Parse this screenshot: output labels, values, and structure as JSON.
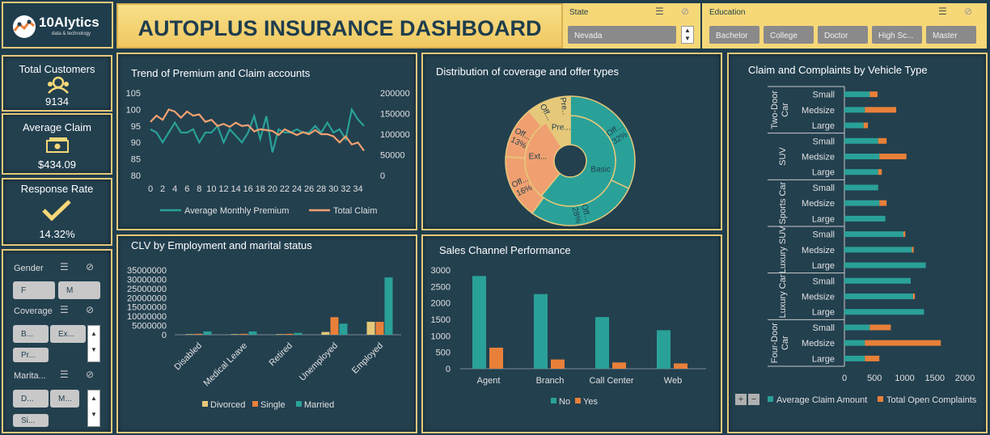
{
  "header": {
    "logo_text": "10Alytics",
    "logo_sub": "data & technology",
    "title": "AUTOPLUS INSURANCE DASHBOARD",
    "state_label": "State",
    "state_value": "Nevada",
    "education_label": "Education",
    "education_options": [
      "Bachelor",
      "College",
      "Doctor",
      "High Sc...",
      "Master"
    ]
  },
  "kpis": {
    "total_customers_label": "Total Customers",
    "total_customers_value": "9134",
    "average_claim_label": "Average Claim",
    "average_claim_value": "$434.09",
    "response_rate_label": "Response Rate",
    "response_rate_value": "14.32%"
  },
  "filters": {
    "gender_label": "Gender",
    "gender_options": [
      "F",
      "M"
    ],
    "coverage_label": "Coverage",
    "coverage_options": [
      "B...",
      "Ex...",
      "Pr..."
    ],
    "marital_label": "Marita...",
    "marital_options": [
      "D...",
      "M...",
      "Si..."
    ]
  },
  "chart_data": [
    {
      "type": "line",
      "title": "Trend of Premium and Claim accounts",
      "x": [
        0,
        1,
        2,
        3,
        4,
        5,
        6,
        7,
        8,
        9,
        10,
        11,
        12,
        13,
        14,
        15,
        16,
        17,
        18,
        19,
        20,
        21,
        22,
        23,
        24,
        25,
        26,
        27,
        28,
        29,
        30,
        31,
        32,
        33,
        34,
        35
      ],
      "x_ticks": [
        0,
        2,
        4,
        6,
        8,
        10,
        12,
        14,
        16,
        18,
        20,
        22,
        24,
        26,
        28,
        30,
        32,
        34
      ],
      "y_left_ticks": [
        80,
        85,
        90,
        95,
        100,
        105
      ],
      "ylim_left": [
        80,
        105
      ],
      "y_right_ticks": [
        0,
        50000,
        100000,
        150000,
        200000
      ],
      "ylim_right": [
        0,
        200000
      ],
      "series": [
        {
          "name": "Average Monthly Premium",
          "axis": "left",
          "color": "#2aa198",
          "values": [
            94,
            93,
            90,
            93,
            96,
            93,
            93,
            94,
            90,
            93,
            93,
            95,
            90,
            94,
            92,
            90,
            93,
            98,
            91,
            98,
            87,
            94,
            93,
            93,
            94,
            93,
            93,
            95,
            93,
            96,
            93,
            94,
            91,
            100,
            97,
            95
          ]
        },
        {
          "name": "Total Claim",
          "axis": "right",
          "color": "#f0a070",
          "values": [
            130000,
            145000,
            135000,
            160000,
            155000,
            140000,
            155000,
            145000,
            148000,
            130000,
            135000,
            120000,
            125000,
            118000,
            128000,
            120000,
            122000,
            107000,
            112000,
            110000,
            108000,
            98000,
            112000,
            105000,
            98000,
            105000,
            100000,
            110000,
            100000,
            100000,
            95000,
            80000,
            95000,
            75000,
            80000,
            60000
          ]
        }
      ]
    },
    {
      "type": "pie",
      "title": "Distribution of coverage and offer types",
      "inner_ring": [
        {
          "label": "Basic",
          "value": 61,
          "color": "#2aa198"
        },
        {
          "label": "Ext...",
          "value": 30,
          "color": "#f0a070"
        },
        {
          "label": "Pre...",
          "value": 9,
          "color": "#e6c87a"
        }
      ],
      "outer_ring": [
        {
          "label": "Off...",
          "pct": "32%",
          "value": 32,
          "color": "#2aa198"
        },
        {
          "label": "Off...",
          "pct": "28%",
          "value": 28,
          "color": "#2aa198"
        },
        {
          "label": "Off...",
          "pct": "16%",
          "value": 16,
          "color": "#f0a070"
        },
        {
          "label": "Off...",
          "pct": "13%",
          "value": 13,
          "color": "#f0a070"
        },
        {
          "label": "Off...",
          "pct": "",
          "value": 6,
          "color": "#e6c87a"
        },
        {
          "label": "Pre...",
          "pct": "",
          "value": 5,
          "color": "#e6c87a"
        }
      ]
    },
    {
      "type": "bar",
      "title": "Claim and Complaints by Vehicle Type",
      "orientation": "horizontal",
      "groups": [
        {
          "name": "Two-Door Car",
          "sizes": [
            "Small",
            "Medsize",
            "Large"
          ]
        },
        {
          "name": "SUV",
          "sizes": [
            "Small",
            "Medsize",
            "Large"
          ]
        },
        {
          "name": "Sports Car",
          "sizes": [
            "Small",
            "Medsize",
            "Large"
          ]
        },
        {
          "name": "Luxury SUV",
          "sizes": [
            "Small",
            "Medsize",
            "Large"
          ]
        },
        {
          "name": "Luxury Car",
          "sizes": [
            "Small",
            "Medsize",
            "Large"
          ]
        },
        {
          "name": "Four-Door Car",
          "sizes": [
            "Small",
            "Medsize",
            "Large"
          ]
        }
      ],
      "x_ticks": [
        0,
        500,
        1000,
        1500,
        2000
      ],
      "xlim": [
        0,
        2000
      ],
      "series": [
        {
          "name": "Average Claim Amount",
          "color": "#2aa198",
          "values": [
            420,
            340,
            320,
            560,
            580,
            560,
            560,
            580,
            680,
            980,
            1120,
            1350,
            1100,
            1140,
            1320,
            420,
            340,
            340
          ]
        },
        {
          "name": "Total Open Complaints",
          "color": "#e8803a",
          "values": [
            130,
            520,
            70,
            140,
            450,
            60,
            0,
            120,
            0,
            30,
            30,
            0,
            0,
            30,
            0,
            350,
            1260,
            240
          ]
        }
      ]
    },
    {
      "type": "bar",
      "title": "CLV by Employment and marital status",
      "categories": [
        "Disabled",
        "Medical Leave",
        "Retired",
        "Unemployed",
        "Employed"
      ],
      "y_ticks": [
        0,
        5000000,
        10000000,
        15000000,
        20000000,
        25000000,
        30000000,
        35000000
      ],
      "ylim": [
        0,
        35000000
      ],
      "series": [
        {
          "name": "Divorced",
          "color": "#e6c87a",
          "values": [
            300000,
            300000,
            300000,
            1500000,
            7000000
          ]
        },
        {
          "name": "Single",
          "color": "#e8803a",
          "values": [
            500000,
            500000,
            500000,
            9500000,
            7000000
          ]
        },
        {
          "name": "Married",
          "color": "#2aa198",
          "values": [
            1800000,
            1800000,
            1000000,
            6000000,
            31000000
          ]
        }
      ]
    },
    {
      "type": "bar",
      "title": "Sales Channel Performance",
      "categories": [
        "Agent",
        "Branch",
        "Call Center",
        "Web"
      ],
      "y_ticks": [
        0,
        500,
        1000,
        1500,
        2000,
        2500,
        3000
      ],
      "ylim": [
        0,
        3000
      ],
      "series": [
        {
          "name": "No",
          "color": "#2aa198",
          "values": [
            2820,
            2270,
            1570,
            1170
          ]
        },
        {
          "name": "Yes",
          "color": "#e8803a",
          "values": [
            640,
            280,
            190,
            160
          ]
        }
      ]
    }
  ]
}
